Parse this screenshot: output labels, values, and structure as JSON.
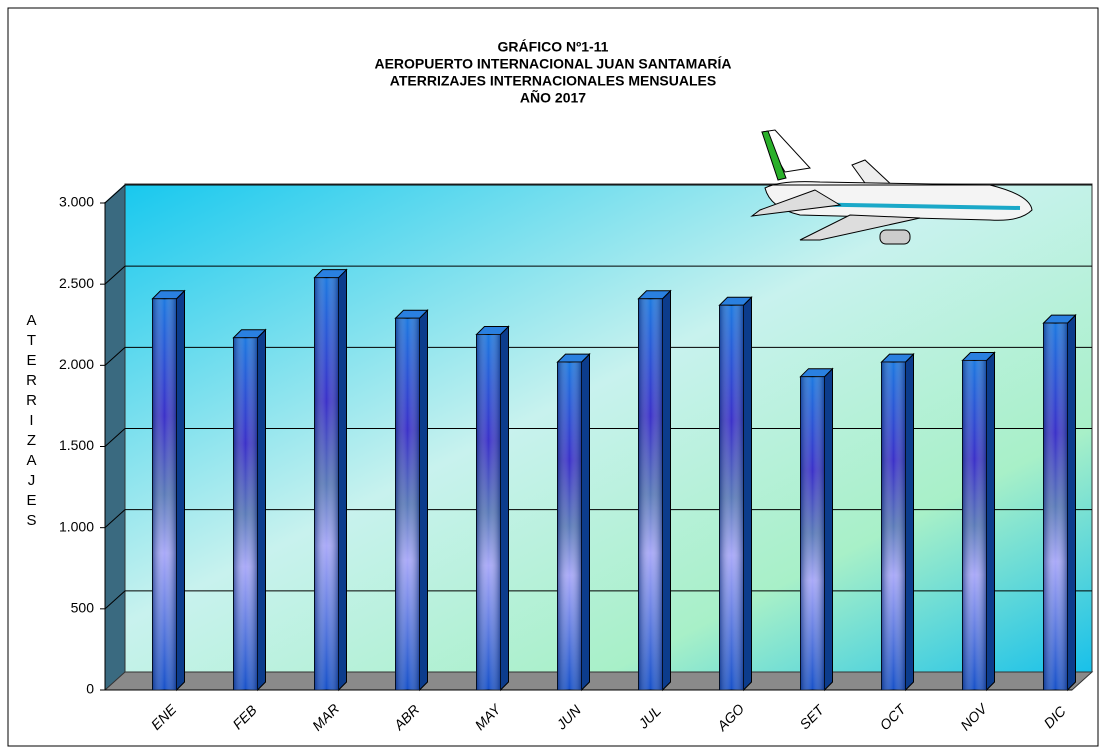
{
  "chart_data": {
    "type": "bar",
    "title": [
      "GRÁFICO Nº1-11",
      "AEROPUERTO  INTERNACIONAL  JUAN SANTAMARÍA",
      "ATERRIZAJES  INTERNACIONALES  MENSUALES",
      "AÑO 2017"
    ],
    "y_label": "ATERRIZAJES",
    "categories": [
      "ENE",
      "FEB",
      "MAR",
      "ABR",
      "MAY",
      "JUN",
      "JUL",
      "AGO",
      "SET",
      "OCT",
      "NOV",
      "DIC"
    ],
    "values": [
      2410,
      2170,
      2540,
      2290,
      2190,
      2020,
      2410,
      2370,
      1930,
      2020,
      2030,
      2260
    ],
    "color": "#1f5fbf",
    "ylim": [
      0,
      3000
    ],
    "yticks": [
      0,
      500,
      {
        "value": 1000,
        "label": "1.000"
      },
      {
        "value": 1500,
        "label": "1.500"
      },
      {
        "value": 2000,
        "label": "2.000"
      },
      {
        "value": 2500,
        "label": "2.500"
      },
      {
        "value": 3000,
        "label": "3.000"
      }
    ],
    "grid": true
  }
}
